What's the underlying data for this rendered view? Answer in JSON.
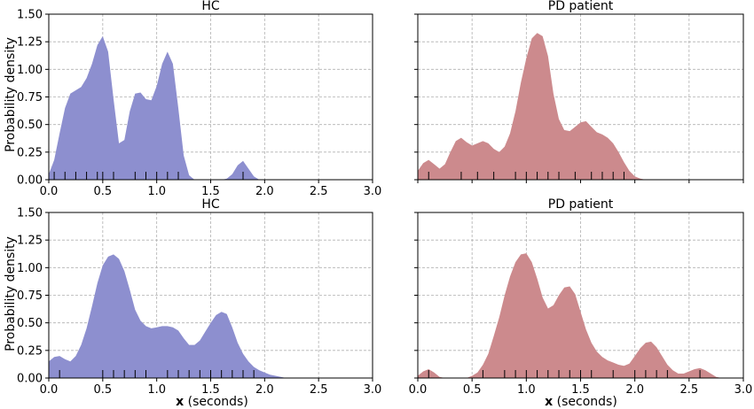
{
  "figure": {
    "ylabel": "Probability density",
    "xlabel_var": "x",
    "xlabel_unit": "(seconds)"
  },
  "colors": {
    "hc": "#8d8fcf",
    "pd": "#cc8a8d",
    "grid": "#b0b0b0"
  },
  "chart_data": [
    {
      "type": "area",
      "title": "HC",
      "xlim": [
        0,
        3.0
      ],
      "ylim": [
        0,
        1.5
      ],
      "xticks": [
        "0.0",
        "0.5",
        "1.0",
        "1.5",
        "2.0",
        "2.5",
        "3.0"
      ],
      "yticks": [
        "0.00",
        "0.25",
        "0.50",
        "0.75",
        "1.00",
        "1.25",
        "1.50"
      ],
      "grid": true,
      "series": [
        {
          "x": [
            0.0,
            0.05,
            0.1,
            0.15,
            0.2,
            0.25,
            0.3,
            0.35,
            0.4,
            0.45,
            0.5,
            0.55,
            0.6,
            0.65,
            0.7,
            0.75,
            0.8,
            0.85,
            0.9,
            0.95,
            1.0,
            1.05,
            1.1,
            1.15,
            1.2,
            1.25,
            1.3,
            1.35,
            1.4,
            1.5,
            1.6,
            1.65,
            1.7,
            1.75,
            1.8,
            1.85,
            1.9,
            1.95
          ],
          "y": [
            0.05,
            0.18,
            0.42,
            0.65,
            0.78,
            0.81,
            0.84,
            0.92,
            1.05,
            1.22,
            1.3,
            1.16,
            0.73,
            0.33,
            0.36,
            0.62,
            0.78,
            0.79,
            0.73,
            0.72,
            0.85,
            1.05,
            1.16,
            1.05,
            0.65,
            0.22,
            0.04,
            0.0,
            0.0,
            0.0,
            0.0,
            0.01,
            0.05,
            0.13,
            0.17,
            0.1,
            0.03,
            0.0
          ]
        }
      ],
      "rug": [
        0.05,
        0.15,
        0.25,
        0.35,
        0.45,
        0.5,
        0.6,
        0.8,
        0.9,
        1.0,
        1.1,
        1.2,
        1.8
      ]
    },
    {
      "type": "area",
      "title": "PD patient",
      "xlim": [
        0,
        3.0
      ],
      "ylim": [
        0,
        1.5
      ],
      "grid": true,
      "series": [
        {
          "x": [
            0.0,
            0.05,
            0.1,
            0.15,
            0.2,
            0.25,
            0.3,
            0.35,
            0.4,
            0.45,
            0.5,
            0.55,
            0.6,
            0.65,
            0.7,
            0.75,
            0.8,
            0.85,
            0.9,
            0.95,
            1.0,
            1.05,
            1.1,
            1.15,
            1.2,
            1.25,
            1.3,
            1.35,
            1.4,
            1.45,
            1.5,
            1.55,
            1.6,
            1.65,
            1.7,
            1.75,
            1.8,
            1.85,
            1.9,
            1.95,
            2.0,
            2.05,
            2.1,
            2.2
          ],
          "y": [
            0.08,
            0.15,
            0.18,
            0.14,
            0.1,
            0.14,
            0.25,
            0.35,
            0.38,
            0.34,
            0.31,
            0.33,
            0.35,
            0.33,
            0.28,
            0.25,
            0.3,
            0.42,
            0.62,
            0.88,
            1.1,
            1.28,
            1.33,
            1.3,
            1.12,
            0.78,
            0.55,
            0.45,
            0.44,
            0.48,
            0.52,
            0.53,
            0.48,
            0.43,
            0.41,
            0.38,
            0.33,
            0.25,
            0.16,
            0.08,
            0.03,
            0.01,
            0.0,
            0.0
          ]
        }
      ],
      "rug": [
        0.1,
        0.4,
        0.55,
        0.7,
        0.9,
        1.0,
        1.1,
        1.2,
        1.3,
        1.45,
        1.6,
        1.7,
        1.8,
        1.9
      ]
    },
    {
      "type": "area",
      "title": "HC",
      "xlim": [
        0,
        3.0
      ],
      "ylim": [
        0,
        1.5
      ],
      "xticks": [
        "0.0",
        "0.5",
        "1.0",
        "1.5",
        "2.0",
        "2.5",
        "3.0"
      ],
      "yticks": [
        "0.00",
        "0.25",
        "0.50",
        "0.75",
        "1.00",
        "1.25",
        "1.50"
      ],
      "grid": true,
      "series": [
        {
          "x": [
            0.0,
            0.05,
            0.1,
            0.15,
            0.2,
            0.25,
            0.3,
            0.35,
            0.4,
            0.45,
            0.5,
            0.55,
            0.6,
            0.65,
            0.7,
            0.75,
            0.8,
            0.85,
            0.9,
            0.95,
            1.0,
            1.05,
            1.1,
            1.15,
            1.2,
            1.25,
            1.3,
            1.35,
            1.4,
            1.45,
            1.5,
            1.55,
            1.6,
            1.65,
            1.7,
            1.75,
            1.8,
            1.85,
            1.9,
            1.95,
            2.0,
            2.05,
            2.1,
            2.15,
            2.2,
            2.25
          ],
          "y": [
            0.15,
            0.19,
            0.2,
            0.17,
            0.15,
            0.2,
            0.3,
            0.45,
            0.65,
            0.86,
            1.02,
            1.1,
            1.12,
            1.08,
            0.97,
            0.8,
            0.62,
            0.52,
            0.47,
            0.45,
            0.46,
            0.47,
            0.47,
            0.46,
            0.43,
            0.36,
            0.3,
            0.3,
            0.34,
            0.42,
            0.5,
            0.57,
            0.6,
            0.58,
            0.46,
            0.32,
            0.22,
            0.15,
            0.1,
            0.07,
            0.05,
            0.03,
            0.02,
            0.01,
            0.0,
            0.0
          ]
        }
      ],
      "rug": [
        0.1,
        0.5,
        0.6,
        0.7,
        0.8,
        0.9,
        1.1,
        1.2,
        1.3,
        1.4,
        1.5,
        1.6,
        1.7,
        1.8,
        1.9
      ]
    },
    {
      "type": "area",
      "title": "PD patient",
      "xlim": [
        0,
        3.0
      ],
      "ylim": [
        0,
        1.5
      ],
      "xticks": [
        "0.0",
        "0.5",
        "1.0",
        "1.5",
        "2.0",
        "2.5",
        "3.0"
      ],
      "grid": true,
      "series": [
        {
          "x": [
            0.0,
            0.05,
            0.1,
            0.15,
            0.2,
            0.25,
            0.3,
            0.35,
            0.4,
            0.45,
            0.5,
            0.55,
            0.6,
            0.65,
            0.7,
            0.75,
            0.8,
            0.85,
            0.9,
            0.95,
            1.0,
            1.05,
            1.1,
            1.15,
            1.2,
            1.25,
            1.3,
            1.35,
            1.4,
            1.45,
            1.5,
            1.55,
            1.6,
            1.65,
            1.7,
            1.75,
            1.8,
            1.85,
            1.9,
            1.95,
            2.0,
            2.05,
            2.1,
            2.15,
            2.2,
            2.25,
            2.3,
            2.35,
            2.4,
            2.45,
            2.5,
            2.55,
            2.6,
            2.65,
            2.7,
            2.75,
            2.8
          ],
          "y": [
            0.02,
            0.06,
            0.08,
            0.05,
            0.01,
            0.0,
            0.0,
            0.0,
            0.0,
            0.0,
            0.02,
            0.05,
            0.12,
            0.22,
            0.38,
            0.55,
            0.75,
            0.92,
            1.05,
            1.12,
            1.13,
            1.05,
            0.9,
            0.73,
            0.63,
            0.66,
            0.75,
            0.82,
            0.83,
            0.76,
            0.6,
            0.44,
            0.32,
            0.24,
            0.19,
            0.16,
            0.14,
            0.12,
            0.11,
            0.13,
            0.2,
            0.27,
            0.32,
            0.33,
            0.28,
            0.2,
            0.12,
            0.07,
            0.04,
            0.04,
            0.06,
            0.08,
            0.09,
            0.07,
            0.04,
            0.01,
            0.0
          ]
        }
      ],
      "rug": [
        0.1,
        0.6,
        0.8,
        0.9,
        1.0,
        1.1,
        1.2,
        1.3,
        1.4,
        1.5,
        1.6,
        1.8,
        2.0,
        2.1,
        2.2,
        2.3,
        2.6
      ]
    }
  ]
}
